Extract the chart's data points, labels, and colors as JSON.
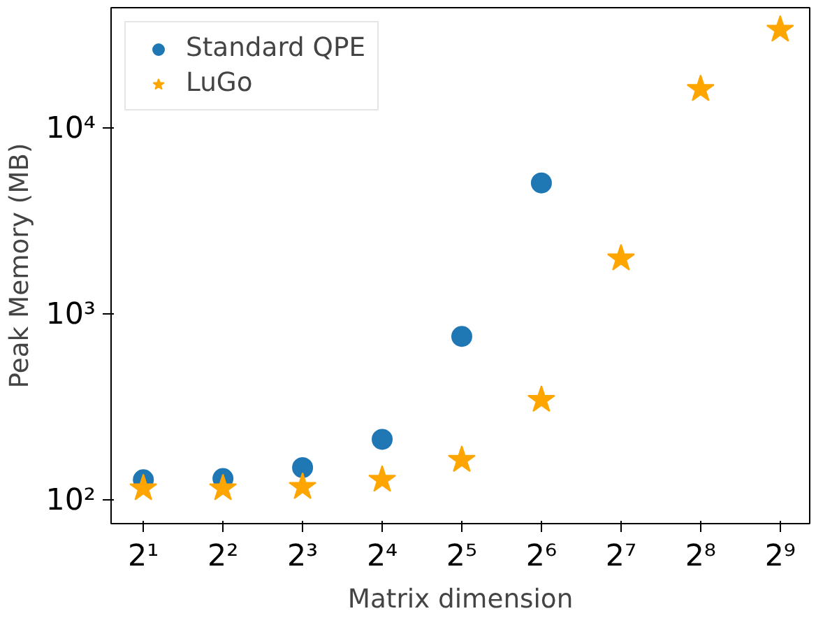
{
  "chart_data": {
    "type": "scatter",
    "xlabel": "Matrix dimension",
    "ylabel": "Peak Memory (MB)",
    "log": "xy",
    "grid": false,
    "legend": "top left",
    "xlim": [
      1.51,
      662
    ],
    "ylim": [
      75,
      44700
    ],
    "xticks": [
      {
        "value": 2,
        "label": "2¹"
      },
      {
        "value": 4,
        "label": "2²"
      },
      {
        "value": 8,
        "label": "2³"
      },
      {
        "value": 16,
        "label": "2⁴"
      },
      {
        "value": 32,
        "label": "2⁵"
      },
      {
        "value": 64,
        "label": "2⁶"
      },
      {
        "value": 128,
        "label": "2⁷"
      },
      {
        "value": 256,
        "label": "2⁸"
      },
      {
        "value": 512,
        "label": "2⁹"
      }
    ],
    "yticks": [
      {
        "value": 100,
        "label": "10²"
      },
      {
        "value": 1000,
        "label": "10³"
      },
      {
        "value": 10000,
        "label": "10⁴"
      }
    ],
    "series": [
      {
        "name": "Standard QPE",
        "color": "#1f77b4",
        "marker": "circle",
        "x": [
          2,
          4,
          8,
          16,
          32,
          64
        ],
        "values": [
          129,
          131,
          150,
          213,
          762,
          5100
        ]
      },
      {
        "name": "LuGo",
        "color": "#ffa500",
        "marker": "star",
        "x": [
          2,
          4,
          8,
          16,
          32,
          64,
          128,
          256,
          512
        ],
        "values": [
          116,
          116,
          118,
          129,
          165,
          347,
          2000,
          16300,
          34000
        ]
      }
    ]
  }
}
